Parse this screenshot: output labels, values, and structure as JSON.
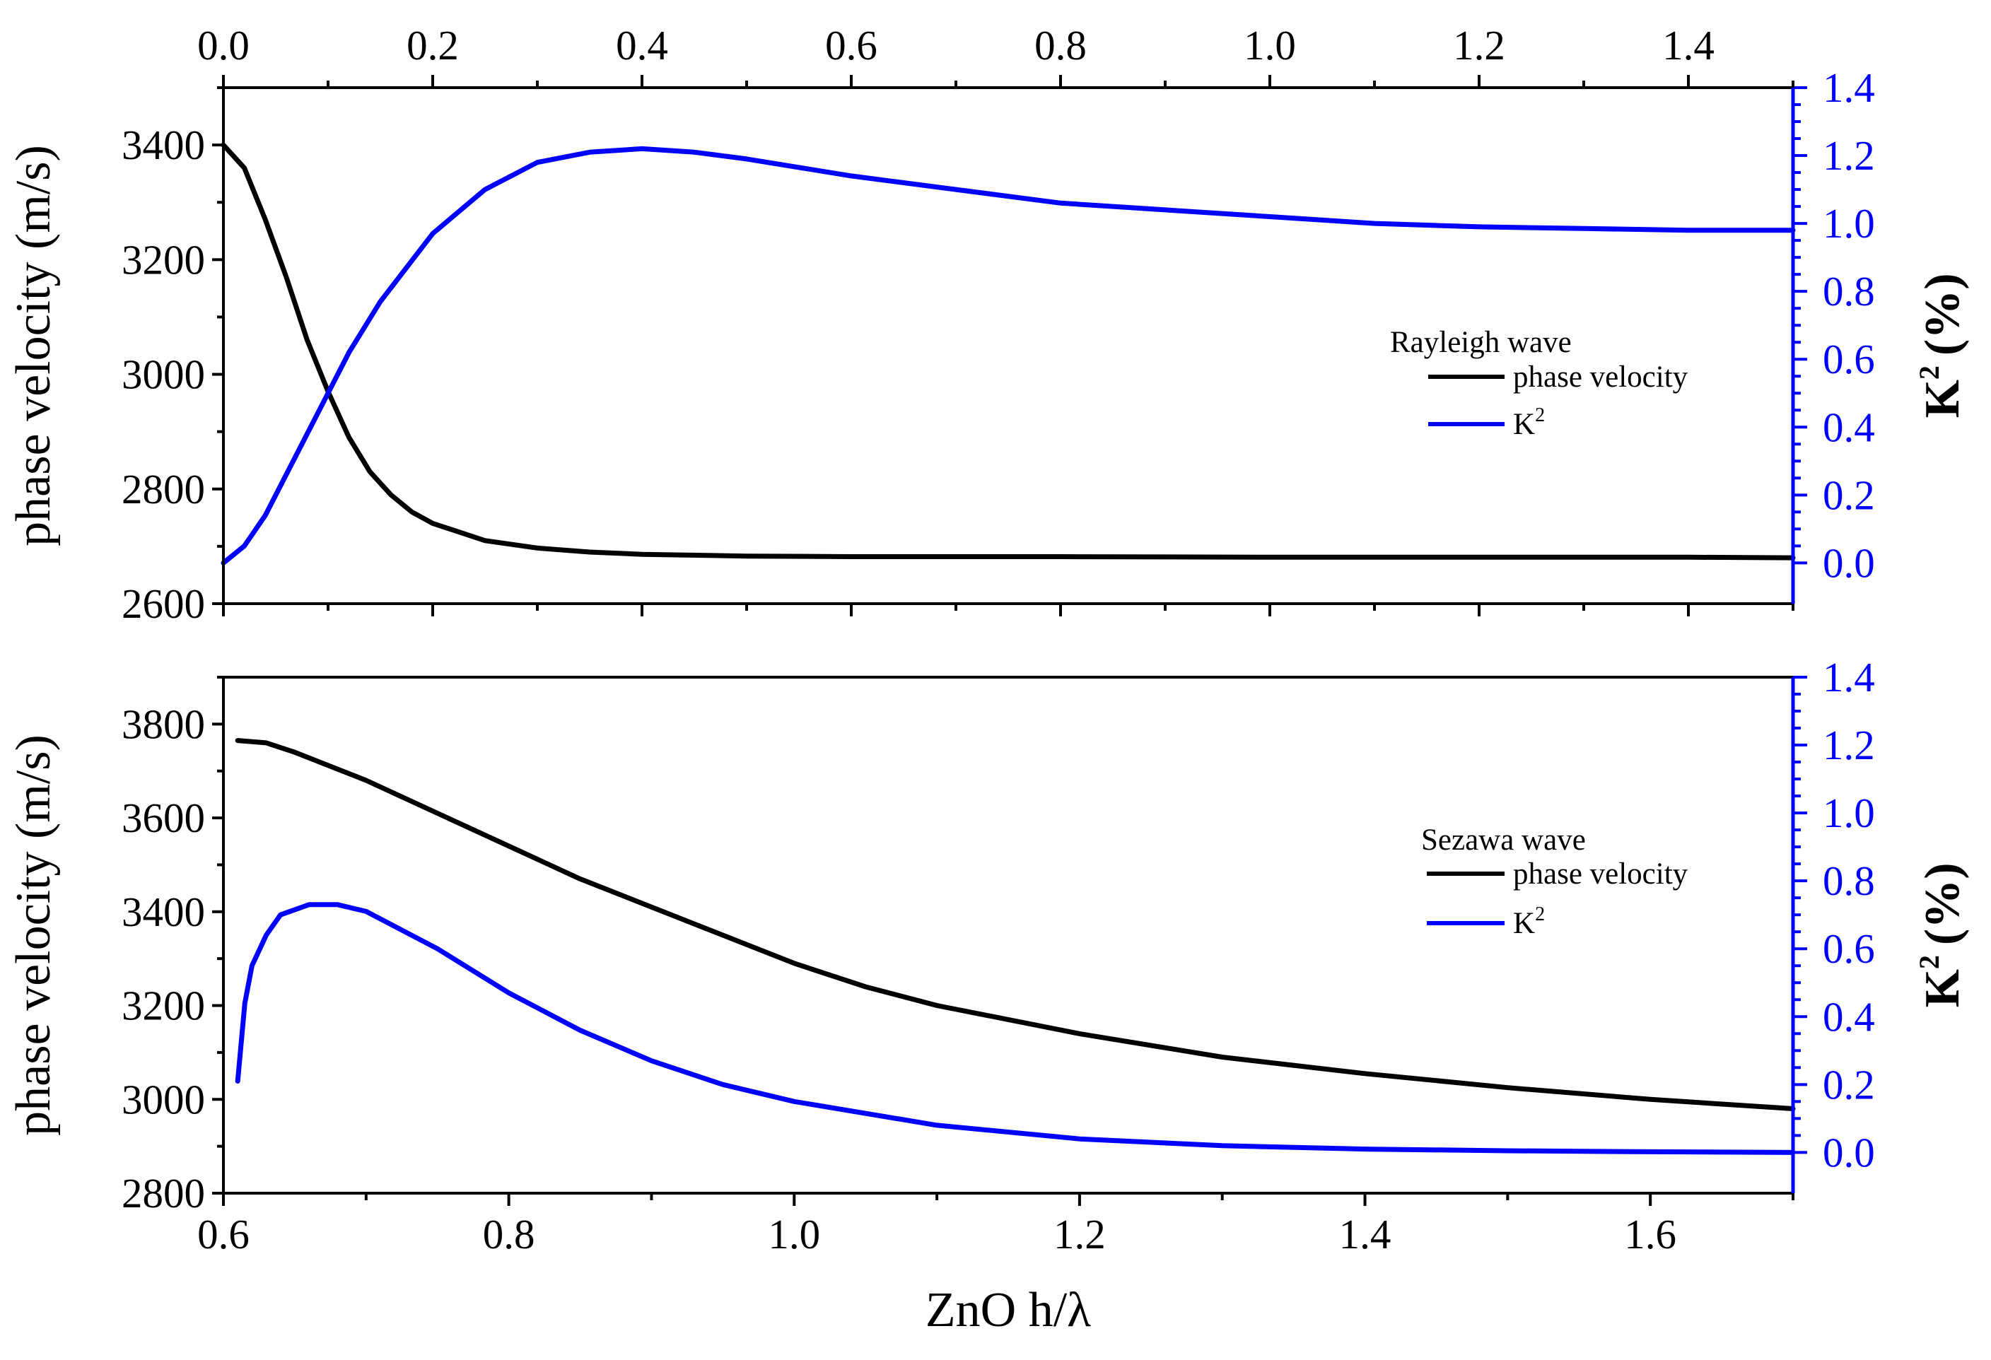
{
  "chart_data": [
    {
      "type": "line",
      "panel": "top",
      "legend_title": "Rayleigh wave",
      "legend_placement": "right-middle",
      "x_axis_position": "top",
      "xlim": [
        0.0,
        1.5
      ],
      "xticks": [
        "0.0",
        "0.2",
        "0.4",
        "0.6",
        "0.8",
        "1.0",
        "1.2",
        "1.4"
      ],
      "xtick_values": [
        0.0,
        0.2,
        0.4,
        0.6,
        0.8,
        1.0,
        1.2,
        1.4
      ],
      "ylabel": "phase velocity (m/s)",
      "ylim": [
        2600,
        3500
      ],
      "yticks": [
        "2600",
        "2800",
        "3000",
        "3200",
        "3400"
      ],
      "ytick_values": [
        2600,
        2800,
        3000,
        3200,
        3400
      ],
      "y2label_main": "K",
      "y2label_sup": "2",
      "y2label_rest": "(%)",
      "y2lim": [
        -0.12,
        1.4
      ],
      "y2ticks": [
        "0.0",
        "0.2",
        "0.4",
        "0.6",
        "0.8",
        "1.0",
        "1.2",
        "1.4"
      ],
      "y2tick_values": [
        0.0,
        0.2,
        0.4,
        0.6,
        0.8,
        1.0,
        1.2,
        1.4
      ],
      "series": [
        {
          "name": "phase velocity",
          "axis": "left",
          "color": "#000000",
          "x": [
            0.0,
            0.02,
            0.04,
            0.06,
            0.08,
            0.1,
            0.12,
            0.14,
            0.16,
            0.18,
            0.2,
            0.25,
            0.3,
            0.35,
            0.4,
            0.5,
            0.6,
            0.8,
            1.0,
            1.2,
            1.4,
            1.5
          ],
          "y": [
            3400,
            3360,
            3270,
            3170,
            3060,
            2970,
            2890,
            2830,
            2790,
            2760,
            2740,
            2710,
            2697,
            2690,
            2686,
            2683,
            2682,
            2682,
            2681,
            2681,
            2681,
            2680
          ]
        },
        {
          "name": "K2",
          "label_main": "K",
          "label_sup": "2",
          "axis": "right",
          "color": "#0000FF",
          "x": [
            0.0,
            0.02,
            0.04,
            0.06,
            0.08,
            0.1,
            0.12,
            0.15,
            0.2,
            0.25,
            0.3,
            0.35,
            0.4,
            0.45,
            0.5,
            0.6,
            0.7,
            0.8,
            0.9,
            1.0,
            1.1,
            1.2,
            1.3,
            1.4,
            1.5
          ],
          "y": [
            0.0,
            0.05,
            0.14,
            0.26,
            0.38,
            0.5,
            0.62,
            0.77,
            0.97,
            1.1,
            1.18,
            1.21,
            1.22,
            1.21,
            1.19,
            1.14,
            1.1,
            1.06,
            1.04,
            1.02,
            1.0,
            0.99,
            0.985,
            0.98,
            0.98
          ]
        }
      ]
    },
    {
      "type": "line",
      "panel": "bottom",
      "legend_title": "Sezawa wave",
      "legend_placement": "right-middle",
      "x_axis_position": "bottom",
      "xlabel": "ZnO h/λ",
      "xlim": [
        0.6,
        1.7
      ],
      "xticks": [
        "0.6",
        "0.8",
        "1.0",
        "1.2",
        "1.4",
        "1.6"
      ],
      "xtick_values": [
        0.6,
        0.8,
        1.0,
        1.2,
        1.4,
        1.6
      ],
      "ylabel": "phase velocity (m/s)",
      "ylim": [
        2800,
        3900
      ],
      "yticks": [
        "2800",
        "3000",
        "3200",
        "3400",
        "3600",
        "3800"
      ],
      "ytick_values": [
        2800,
        3000,
        3200,
        3400,
        3600,
        3800
      ],
      "y2label_main": "K",
      "y2label_sup": "2",
      "y2label_rest": "(%)",
      "y2lim": [
        -0.12,
        1.4
      ],
      "y2ticks": [
        "0.0",
        "0.2",
        "0.4",
        "0.6",
        "0.8",
        "1.0",
        "1.2",
        "1.4"
      ],
      "y2tick_values": [
        0.0,
        0.2,
        0.4,
        0.6,
        0.8,
        1.0,
        1.2,
        1.4
      ],
      "series": [
        {
          "name": "phase velocity",
          "axis": "left",
          "color": "#000000",
          "x": [
            0.61,
            0.63,
            0.65,
            0.7,
            0.75,
            0.8,
            0.85,
            0.9,
            0.95,
            1.0,
            1.05,
            1.1,
            1.2,
            1.3,
            1.4,
            1.5,
            1.6,
            1.7
          ],
          "y": [
            3765,
            3760,
            3740,
            3680,
            3610,
            3540,
            3470,
            3410,
            3350,
            3290,
            3240,
            3200,
            3140,
            3090,
            3055,
            3025,
            3000,
            2980
          ]
        },
        {
          "name": "K2",
          "label_main": "K",
          "label_sup": "2",
          "axis": "right",
          "color": "#0000FF",
          "x": [
            0.61,
            0.615,
            0.62,
            0.63,
            0.64,
            0.66,
            0.68,
            0.7,
            0.75,
            0.8,
            0.85,
            0.9,
            0.95,
            1.0,
            1.1,
            1.2,
            1.3,
            1.4,
            1.5,
            1.6,
            1.7
          ],
          "y": [
            0.21,
            0.44,
            0.55,
            0.64,
            0.7,
            0.73,
            0.73,
            0.71,
            0.6,
            0.47,
            0.36,
            0.27,
            0.2,
            0.15,
            0.08,
            0.04,
            0.02,
            0.01,
            0.005,
            0.002,
            0.0
          ]
        }
      ]
    }
  ]
}
